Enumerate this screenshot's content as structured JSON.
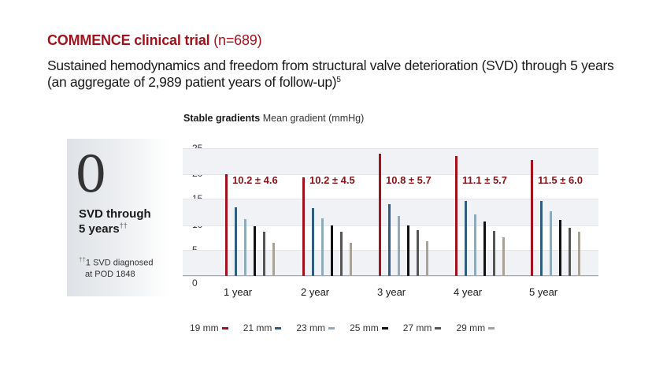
{
  "header": {
    "title_bold": "COMMENCE clinical trial",
    "title_n": "(n=689)",
    "subtitle": "Sustained hemodynamics and freedom from structural valve deterioration (SVD) through 5 years (an aggregate of 2,989 patient years of follow-up)",
    "subtitle_ref": "5"
  },
  "side_panel": {
    "big_number": "0",
    "label_line1": "SVD through",
    "label_line2": "5 years",
    "label_mark": "††",
    "note_mark": "††",
    "note_line1": "1 SVD diagnosed",
    "note_line2": "at POD 1848"
  },
  "chart_heading": {
    "bold": "Stable gradients",
    "regular": "Mean gradient (mmHg)"
  },
  "colors": {
    "19mm": "#a3121c",
    "21mm": "#2f5d80",
    "23mm": "#8faab8",
    "25mm": "#111111",
    "27mm": "#555555",
    "29mm": "#a8a396",
    "title": "#a3121c",
    "value_label": "#8e1118",
    "band": "#f1f2f5"
  },
  "chart_data": {
    "type": "bar",
    "title": "Stable gradients",
    "subtitle": "Mean gradient (mmHg)",
    "xlabel": "",
    "ylabel": "Mean gradient (mmHg)",
    "ylim": [
      0,
      25
    ],
    "yticks": [
      0,
      5,
      10,
      15,
      20,
      25
    ],
    "grid": "alternating horizontal bands",
    "legend_position": "bottom",
    "categories": [
      "1 year",
      "2 year",
      "3 year",
      "4 year",
      "5 year"
    ],
    "annotations": [
      "10.2 ± 4.6",
      "10.2 ± 4.5",
      "10.8 ± 5.7",
      "11.1 ± 5.7",
      "11.5 ± 6.0"
    ],
    "series": [
      {
        "name": "19 mm",
        "values": [
          20.0,
          19.4,
          24.1,
          23.6,
          22.8
        ]
      },
      {
        "name": "21 mm",
        "values": [
          13.5,
          13.4,
          14.1,
          14.8,
          14.8
        ]
      },
      {
        "name": "23 mm",
        "values": [
          11.2,
          11.3,
          11.8,
          12.1,
          12.7
        ]
      },
      {
        "name": "25 mm",
        "values": [
          9.8,
          9.9,
          9.9,
          10.7,
          11.0
        ]
      },
      {
        "name": "27 mm",
        "values": [
          8.7,
          8.7,
          9.0,
          8.9,
          9.5
        ]
      },
      {
        "name": "29 mm",
        "values": [
          6.5,
          6.5,
          6.8,
          7.6,
          8.7
        ]
      }
    ]
  },
  "legend": [
    {
      "label": "19 mm",
      "key": "19mm"
    },
    {
      "label": "21 mm",
      "key": "21mm"
    },
    {
      "label": "23 mm",
      "key": "23mm"
    },
    {
      "label": "25 mm",
      "key": "25mm"
    },
    {
      "label": "27 mm",
      "key": "27mm"
    },
    {
      "label": "29 mm",
      "key": "29mm"
    }
  ]
}
